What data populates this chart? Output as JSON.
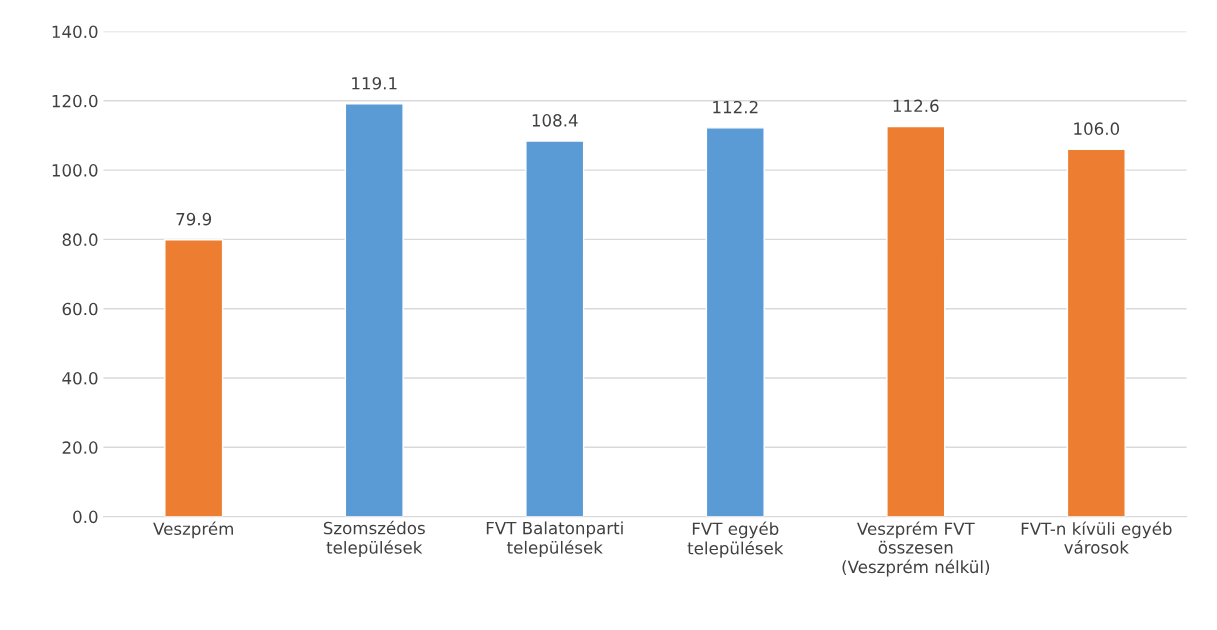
{
  "chart_data": {
    "type": "bar",
    "categories": [
      "Veszprém",
      "Szomszédos\ntelepülések",
      "FVT Balatonparti\ntelepülések",
      "FVT egyéb\ntelepülések",
      "Veszprém FVT\nösszesen\n(Veszprém nélkül)",
      "FVT-n kívüli egyéb\nvárosok"
    ],
    "values": [
      79.9,
      119.1,
      108.4,
      112.2,
      112.6,
      106.0
    ],
    "colors": [
      "#ed7d31",
      "#5b9bd5",
      "#5b9bd5",
      "#5b9bd5",
      "#ed7d31",
      "#ed7d31"
    ],
    "ylim": [
      0,
      140
    ],
    "yticks": [
      {
        "value": 0,
        "label": "0.0"
      },
      {
        "value": 20,
        "label": "20.0"
      },
      {
        "value": 40,
        "label": "40.0"
      },
      {
        "value": 60,
        "label": "60.0"
      },
      {
        "value": 80,
        "label": "80.0"
      },
      {
        "value": 100,
        "label": "100.0"
      },
      {
        "value": 120,
        "label": "120.0"
      },
      {
        "value": 140,
        "label": "140.0"
      }
    ],
    "value_labels": [
      "79.9",
      "119.1",
      "108.4",
      "112.2",
      "112.6",
      "106.0"
    ],
    "grid": "y",
    "legend": false
  }
}
